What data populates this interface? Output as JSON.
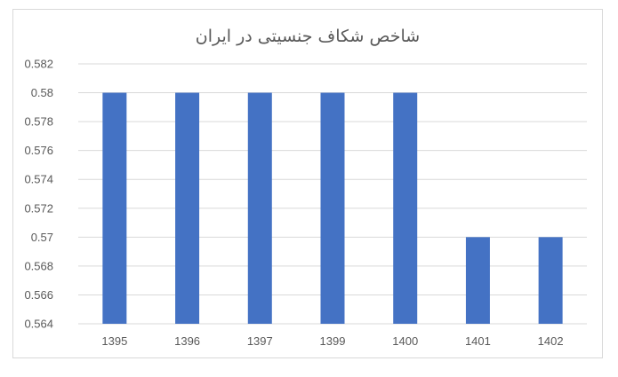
{
  "chart_data": {
    "type": "bar",
    "title": "شاخص شکاف جنسیتی در ایران",
    "categories": [
      "1395",
      "1396",
      "1397",
      "1399",
      "1400",
      "1401",
      "1402"
    ],
    "values": [
      0.58,
      0.58,
      0.58,
      0.58,
      0.58,
      0.57,
      0.57
    ],
    "ylim": [
      0.564,
      0.582
    ],
    "yticks": [
      "0.582",
      "0.58",
      "0.578",
      "0.576",
      "0.574",
      "0.572",
      "0.57",
      "0.568",
      "0.566",
      "0.564"
    ],
    "grid": true,
    "legend": "none",
    "bar_color": "#4472c4"
  }
}
